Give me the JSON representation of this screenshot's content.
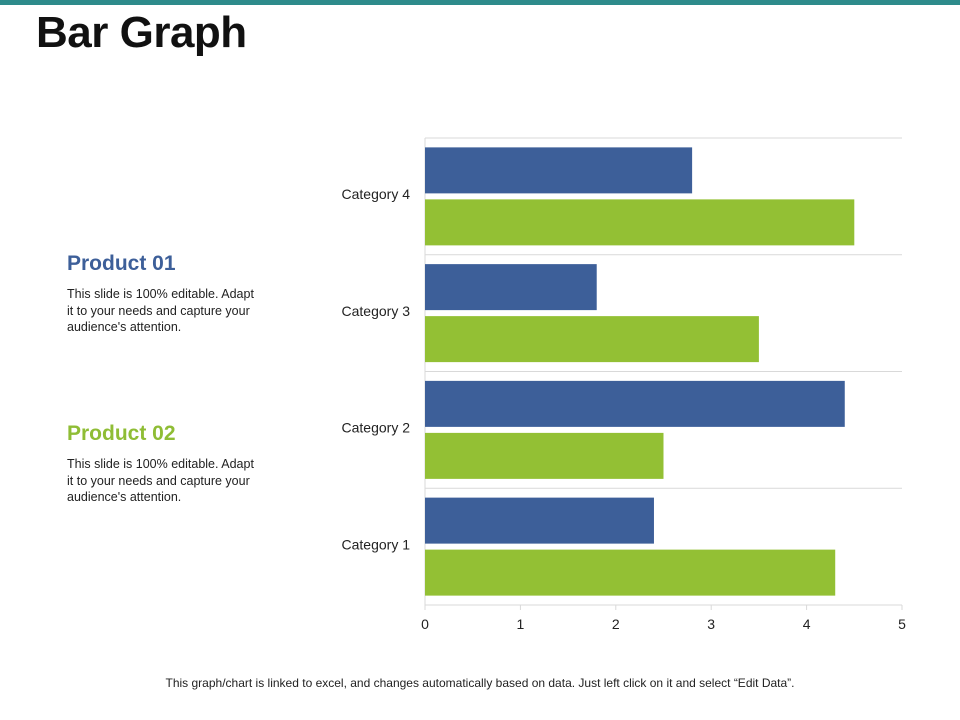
{
  "slide": {
    "title": "Bar Graph",
    "footnote": "This graph/chart is linked to excel, and changes automatically based on data. Just left click on it and select “Edit Data”."
  },
  "products": [
    {
      "heading": "Product 01",
      "description": "This slide is 100% editable. Adapt it to your needs and capture your audience's attention.",
      "color": "#3d5f99"
    },
    {
      "heading": "Product 02",
      "description": "This slide is 100% editable. Adapt it to your needs and capture your audience's attention.",
      "color": "#8fbd35"
    }
  ],
  "colors": {
    "accent_strip": "#2e8b8b",
    "series_1": "#3d5f99",
    "series_2": "#93c034",
    "grid": "#d9d9d9"
  },
  "chart_data": {
    "type": "bar",
    "orientation": "horizontal",
    "categories": [
      "Category 1",
      "Category 2",
      "Category 3",
      "Category 4"
    ],
    "series": [
      {
        "values": [
          2.4,
          4.4,
          1.8,
          2.8
        ]
      },
      {
        "values": [
          4.3,
          2.5,
          3.5,
          4.5
        ]
      }
    ],
    "xlim": [
      0,
      5
    ],
    "x_ticks": [
      "0",
      "1",
      "2",
      "3",
      "4",
      "5"
    ],
    "grid": "horizontal separators",
    "legend": "none"
  }
}
